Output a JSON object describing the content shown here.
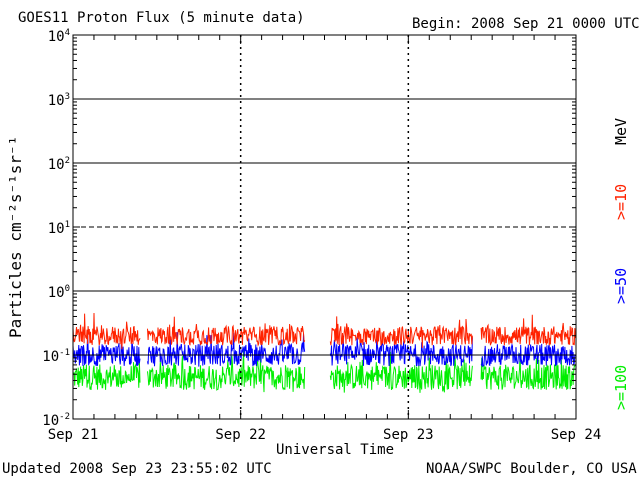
{
  "chart_data": {
    "type": "line",
    "title": "GOES11 Proton Flux (5 minute data)",
    "begin_label": "Begin: 2008 Sep 21 0000 UTC",
    "xlabel": "Universal Time",
    "ylabel": "Particles cm⁻²s⁻¹sr⁻¹",
    "y_scale": "log",
    "ylim": [
      0.01,
      10000
    ],
    "y_ticks": [
      {
        "base": "10",
        "exp": "-2",
        "value": 0.01
      },
      {
        "base": "10",
        "exp": "-1",
        "value": 0.1
      },
      {
        "base": "10",
        "exp": "0",
        "value": 1
      },
      {
        "base": "10",
        "exp": "1",
        "value": 10
      },
      {
        "base": "10",
        "exp": "2",
        "value": 100
      },
      {
        "base": "10",
        "exp": "3",
        "value": 1000
      },
      {
        "base": "10",
        "exp": "4",
        "value": 10000
      }
    ],
    "x_ticks": [
      "Sep 21",
      "Sep 22",
      "Sep 23",
      "Sep 24"
    ],
    "xlim_hours": [
      0,
      72
    ],
    "thresholds": [
      {
        "value": 1000,
        "style": "solid"
      },
      {
        "value": 100,
        "style": "solid"
      },
      {
        "value": 10,
        "style": "dashed"
      },
      {
        "value": 1,
        "style": "solid"
      },
      {
        "value": 0.1,
        "style": "solid"
      }
    ],
    "data_gaps_hours": [
      [
        9.6,
        10.6
      ],
      [
        33.2,
        36.8
      ],
      [
        57.2,
        58.4
      ]
    ],
    "series": [
      {
        "name": ">=10",
        "color": "#ff2200",
        "baseline": 0.2,
        "spread": 0.3
      },
      {
        "name": ">=50",
        "color": "#0000ff",
        "baseline": 0.1,
        "spread": 0.35
      },
      {
        "name": ">=100",
        "color": "#00ee00",
        "baseline": 0.045,
        "spread": 0.4
      }
    ],
    "energy_unit": "MeV"
  },
  "footer": {
    "updated": "Updated 2008 Sep 23 23:55:02 UTC",
    "source": "NOAA/SWPC Boulder, CO USA"
  }
}
